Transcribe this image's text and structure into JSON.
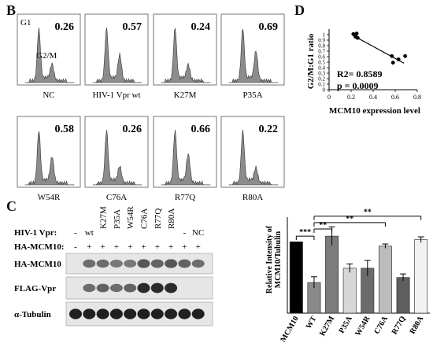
{
  "panels": {
    "B": "B",
    "C": "C",
    "D": "D"
  },
  "flow": {
    "top_labels": {
      "g1": "G1",
      "g2m": "G2/M"
    },
    "histograms": [
      {
        "label": "NC",
        "ratio": "0.26",
        "g2m_fraction": 0.26
      },
      {
        "label": "HIV-1 Vpr  wt",
        "ratio": "0.57",
        "g2m_fraction": 0.57
      },
      {
        "label": "K27M",
        "ratio": "0.24",
        "g2m_fraction": 0.24
      },
      {
        "label": "P35A",
        "ratio": "0.69",
        "g2m_fraction": 0.69
      },
      {
        "label": "W54R",
        "ratio": "0.58",
        "g2m_fraction": 0.58
      },
      {
        "label": "C76A",
        "ratio": "0.26",
        "g2m_fraction": 0.26
      },
      {
        "label": "R77Q",
        "ratio": "0.66",
        "g2m_fraction": 0.66
      },
      {
        "label": "R80A",
        "ratio": "0.22",
        "g2m_fraction": 0.22
      }
    ]
  },
  "blot": {
    "row_labels": {
      "vpr": "HIV-1  Vpr:",
      "hamcm": "HA-MCM10:"
    },
    "lanes": [
      "-",
      "wt",
      "K27M",
      "P35A",
      "W54R",
      "C76A",
      "R77Q",
      "R80A",
      "-",
      "NC"
    ],
    "vpr_marks": [
      "-",
      "wt",
      "K27M",
      "P35A",
      "W54R",
      "C76A",
      "R77Q",
      "R80A",
      "-",
      "NC"
    ],
    "ha_marks": [
      "-",
      "+",
      "+",
      "+",
      "+",
      "+",
      "+",
      "+",
      "+",
      "+"
    ],
    "bands": [
      {
        "label": "HA-MCM10",
        "intensity": [
          0,
          0.55,
          0.55,
          0.5,
          0.5,
          0.65,
          0.6,
          0.65,
          0.6,
          0.55
        ]
      },
      {
        "label": "FLAG-Vpr",
        "intensity": [
          0,
          0.55,
          0.6,
          0.55,
          0.6,
          0.85,
          0.85,
          0.85,
          0,
          0
        ]
      },
      {
        "label": "α-Tubulin",
        "intensity": [
          0.9,
          0.9,
          0.9,
          0.9,
          0.9,
          0.9,
          0.9,
          0.9,
          0.9,
          0.9
        ]
      }
    ]
  },
  "chart_data": [
    {
      "type": "bar",
      "ylabel": "Relative Intensity of MCM10/Tubulin",
      "ylabel_lines": [
        "Relative Intensity of",
        "MCM10/Tubulin"
      ],
      "categories": [
        "MCM10",
        "WT",
        "K27M",
        "P35A",
        "W54R",
        "C76A",
        "R77Q",
        "R80A"
      ],
      "values": [
        1.0,
        0.43,
        1.08,
        0.63,
        0.63,
        0.94,
        0.5,
        1.03
      ],
      "errors": [
        0.0,
        0.08,
        0.13,
        0.06,
        0.11,
        0.03,
        0.05,
        0.04
      ],
      "colors": [
        "#000000",
        "#8a8a8a",
        "#7c7c7c",
        "#d6d6d6",
        "#6b6b6b",
        "#bcbcbc",
        "#5e5e5e",
        "#f2f2f2"
      ],
      "ylim": [
        0,
        1.5
      ],
      "significance": [
        {
          "from": "MCM10",
          "to": "WT",
          "label": "***"
        },
        {
          "from": "WT",
          "to": "R80A",
          "label": "**"
        },
        {
          "from": "WT",
          "to": "C76A",
          "label": "**"
        },
        {
          "from": "WT",
          "to": "K27M",
          "label": "**"
        }
      ]
    },
    {
      "type": "scatter",
      "xlabel": "MCM10  expression level",
      "ylabel": "G2/M:G1  ratio",
      "xlim": [
        0,
        0.8
      ],
      "ylim": [
        0,
        1.1
      ],
      "xticks": [
        "0",
        "0.2",
        "0.4",
        "0.6",
        "0.8"
      ],
      "yticks": [
        "0",
        "0.1",
        "0.2",
        "0.3",
        "0.4",
        "0.5",
        "0.6",
        "0.7",
        "0.8",
        "0.9",
        "1"
      ],
      "points": [
        {
          "x": 0.22,
          "y": 1.01
        },
        {
          "x": 0.25,
          "y": 1.02
        },
        {
          "x": 0.24,
          "y": 0.96
        },
        {
          "x": 0.26,
          "y": 0.94
        },
        {
          "x": 0.57,
          "y": 0.61
        },
        {
          "x": 0.58,
          "y": 0.49
        },
        {
          "x": 0.63,
          "y": 0.55
        },
        {
          "x": 0.69,
          "y": 0.61
        }
      ],
      "trend": {
        "x0": 0.22,
        "y0": 0.98,
        "x1": 0.68,
        "y1": 0.48
      },
      "annotations": {
        "r2": "R2= 0.8589",
        "p": "p = 0.0009"
      }
    }
  ]
}
